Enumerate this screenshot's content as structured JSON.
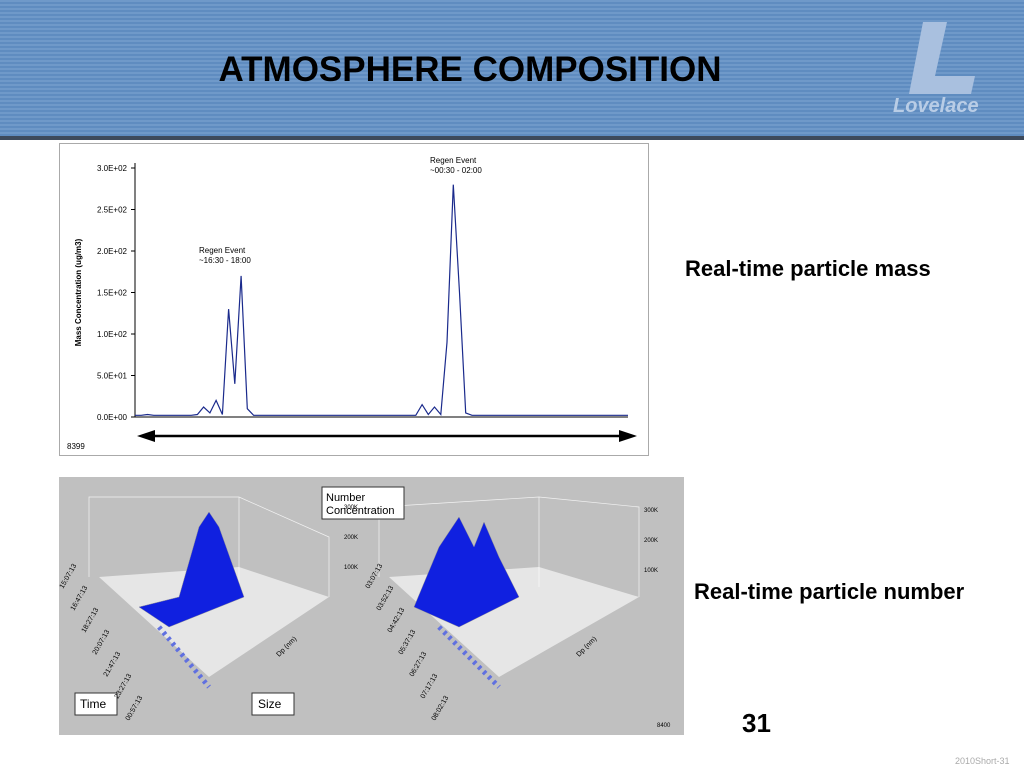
{
  "header": {
    "title": "ATMOSPHERE COMPOSITION",
    "logo": "Lovelace"
  },
  "mass_chart": {
    "type": "line",
    "y_label": "Mass Concentration (ug/m3)",
    "ylim": [
      0,
      300
    ],
    "yticks": [
      {
        "value": 0,
        "label": "0.0E+00"
      },
      {
        "value": 50,
        "label": "5.0E+01"
      },
      {
        "value": 100,
        "label": "1.0E+02"
      },
      {
        "value": 150,
        "label": "1.5E+02"
      },
      {
        "value": 200,
        "label": "2.0E+02"
      },
      {
        "value": 250,
        "label": "2.5E+02"
      },
      {
        "value": 300,
        "label": "3.0E+02"
      }
    ],
    "annotations": [
      {
        "title": "Regen Event",
        "time": "~16:30 - 18:00"
      },
      {
        "title": "Regen Event",
        "time": "~00:30 - 02:00"
      }
    ],
    "figure_id": "8399",
    "color": "#1a2a8c",
    "values": [
      2,
      2,
      3,
      2,
      2,
      2,
      2,
      2,
      2,
      2,
      3,
      12,
      5,
      20,
      3,
      130,
      40,
      170,
      10,
      2,
      2,
      2,
      2,
      2,
      2,
      2,
      2,
      2,
      2,
      2,
      2,
      2,
      2,
      2,
      2,
      2,
      2,
      2,
      2,
      2,
      2,
      2,
      2,
      2,
      2,
      2,
      15,
      3,
      12,
      3,
      90,
      280,
      150,
      5,
      2,
      2,
      2,
      2,
      2,
      2,
      2,
      2,
      2,
      2,
      2,
      2,
      2,
      2,
      2,
      2,
      2,
      2,
      2,
      2,
      2,
      2,
      2,
      2,
      2,
      2
    ]
  },
  "labels": {
    "mass": "Real-time particle mass",
    "number": "Real-time particle number"
  },
  "number_chart": {
    "legend": "Number Concentration",
    "time_label": "Time",
    "size_label": "Size",
    "figure_id": "8400",
    "left_times": [
      "15:07:13",
      "16:47:13",
      "18:27:13",
      "20:07:13",
      "21:47:13",
      "23:27:13",
      "00:57:13"
    ],
    "right_times": [
      "03:07:13",
      "03:52:13",
      "04:42:13",
      "05:37:13",
      "06:27:13",
      "07:17:13",
      "08:02:13"
    ],
    "z_ticks": [
      "100K",
      "200K",
      "300K"
    ],
    "size_axis": "Dp (nm)"
  },
  "page_number": "31",
  "footer": "2010Short-31"
}
